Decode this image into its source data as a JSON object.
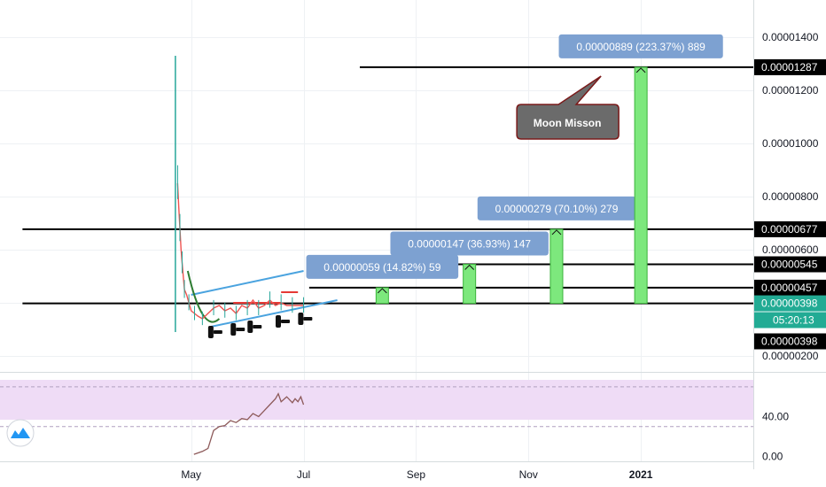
{
  "chart_data": {
    "type": "line",
    "price_axis": {
      "ticks": [
        "0.00001400",
        "0.00001200",
        "0.00001000",
        "0.00000800",
        "0.00000600",
        "0.00000400",
        "0.00000200"
      ],
      "tick_values": [
        1.4e-05,
        1.2e-05,
        1e-05,
        8e-06,
        6e-06,
        4e-06,
        2e-06
      ]
    },
    "price_tags": [
      {
        "label": "0.00001287",
        "value": 1.287e-05,
        "style": "black"
      },
      {
        "label": "0.00000677",
        "value": 6.77e-06,
        "style": "black"
      },
      {
        "label": "0.00000545",
        "value": 5.45e-06,
        "style": "black"
      },
      {
        "label": "0.00000457",
        "value": 4.57e-06,
        "style": "black"
      },
      {
        "label": "0.00000398",
        "value": 3.98e-06,
        "style": "teal"
      },
      {
        "label": "05:20:13",
        "value": 3.35e-06,
        "style": "teal"
      },
      {
        "label": "0.00000398",
        "value": 2.55e-06,
        "style": "black"
      }
    ],
    "horizontal_levels": [
      {
        "value": 1.287e-05,
        "start_month": 3.0
      },
      {
        "value": 6.77e-06,
        "start_month": -3
      },
      {
        "value": 5.45e-06,
        "start_month": 2.2
      },
      {
        "value": 4.57e-06,
        "start_month": 2.1
      },
      {
        "value": 3.98e-06,
        "start_month": -3
      }
    ],
    "time_axis": {
      "labels": [
        "May",
        "Jul",
        "Sep",
        "Nov",
        "2021"
      ],
      "months": [
        0,
        2,
        4,
        6,
        8
      ],
      "month_range": [
        -3.4,
        10.0
      ]
    },
    "price_range": [
      1.4e-06,
      1.54e-05
    ],
    "targets": [
      {
        "label": "0.00000059 (14.82%) 59",
        "month": 3.4,
        "from": 3.98e-06,
        "to": 4.57e-06
      },
      {
        "label": "0.00000147 (36.93%) 147",
        "month": 4.95,
        "from": 3.98e-06,
        "to": 5.45e-06
      },
      {
        "label": "0.00000279 (70.10%) 279",
        "month": 6.5,
        "from": 3.98e-06,
        "to": 6.77e-06
      },
      {
        "label": "0.00000889 (223.37%) 889",
        "month": 8.0,
        "from": 3.98e-06,
        "to": 1.287e-05
      }
    ],
    "callout": {
      "text": "Moon Misson"
    },
    "price_series": [
      [
        -0.28,
        2.9e-06
      ],
      [
        -0.28,
        1.33e-05
      ],
      [
        -0.24,
        8.5e-06
      ],
      [
        -0.22,
        7.6e-06
      ],
      [
        -0.2,
        6.8e-06
      ],
      [
        -0.18,
        6e-06
      ],
      [
        -0.16,
        5.5e-06
      ],
      [
        -0.14,
        5e-06
      ],
      [
        -0.12,
        4.5e-06
      ],
      [
        -0.08,
        4.3e-06
      ],
      [
        -0.04,
        4e-06
      ],
      [
        0.0,
        3.7e-06
      ],
      [
        0.06,
        3.6e-06
      ],
      [
        0.12,
        3.5e-06
      ],
      [
        0.2,
        3.4e-06
      ],
      [
        0.3,
        3.6e-06
      ],
      [
        0.4,
        3.8e-06
      ],
      [
        0.5,
        3.9e-06
      ],
      [
        0.6,
        3.7e-06
      ],
      [
        0.7,
        3.8e-06
      ],
      [
        0.8,
        3.6e-06
      ],
      [
        0.9,
        3.9e-06
      ],
      [
        1.0,
        3.8e-06
      ],
      [
        1.1,
        4.1e-06
      ],
      [
        1.2,
        3.8e-06
      ],
      [
        1.3,
        3.9e-06
      ],
      [
        1.4,
        4.1e-06
      ],
      [
        1.5,
        3.9e-06
      ],
      [
        1.6,
        4e-06
      ],
      [
        1.7,
        3.9e-06
      ],
      [
        1.8,
        3.9e-06
      ],
      [
        1.9,
        3.9e-06
      ],
      [
        2.0,
        3.9e-06
      ]
    ],
    "rsi": {
      "ticks": [
        "40.00",
        "0.00"
      ],
      "tick_values": [
        40,
        0
      ],
      "band": [
        30,
        70
      ],
      "range": [
        -5,
        85
      ],
      "series": [
        [
          0.05,
          2
        ],
        [
          0.2,
          5
        ],
        [
          0.3,
          8
        ],
        [
          0.4,
          26
        ],
        [
          0.5,
          30
        ],
        [
          0.6,
          31
        ],
        [
          0.7,
          36
        ],
        [
          0.8,
          34
        ],
        [
          0.9,
          38
        ],
        [
          1.0,
          37
        ],
        [
          1.1,
          43
        ],
        [
          1.2,
          40
        ],
        [
          1.3,
          46
        ],
        [
          1.4,
          52
        ],
        [
          1.5,
          58
        ],
        [
          1.55,
          63
        ],
        [
          1.6,
          55
        ],
        [
          1.7,
          60
        ],
        [
          1.8,
          54
        ],
        [
          1.85,
          58
        ],
        [
          1.9,
          55
        ],
        [
          1.95,
          60
        ],
        [
          2.0,
          52
        ]
      ]
    }
  }
}
